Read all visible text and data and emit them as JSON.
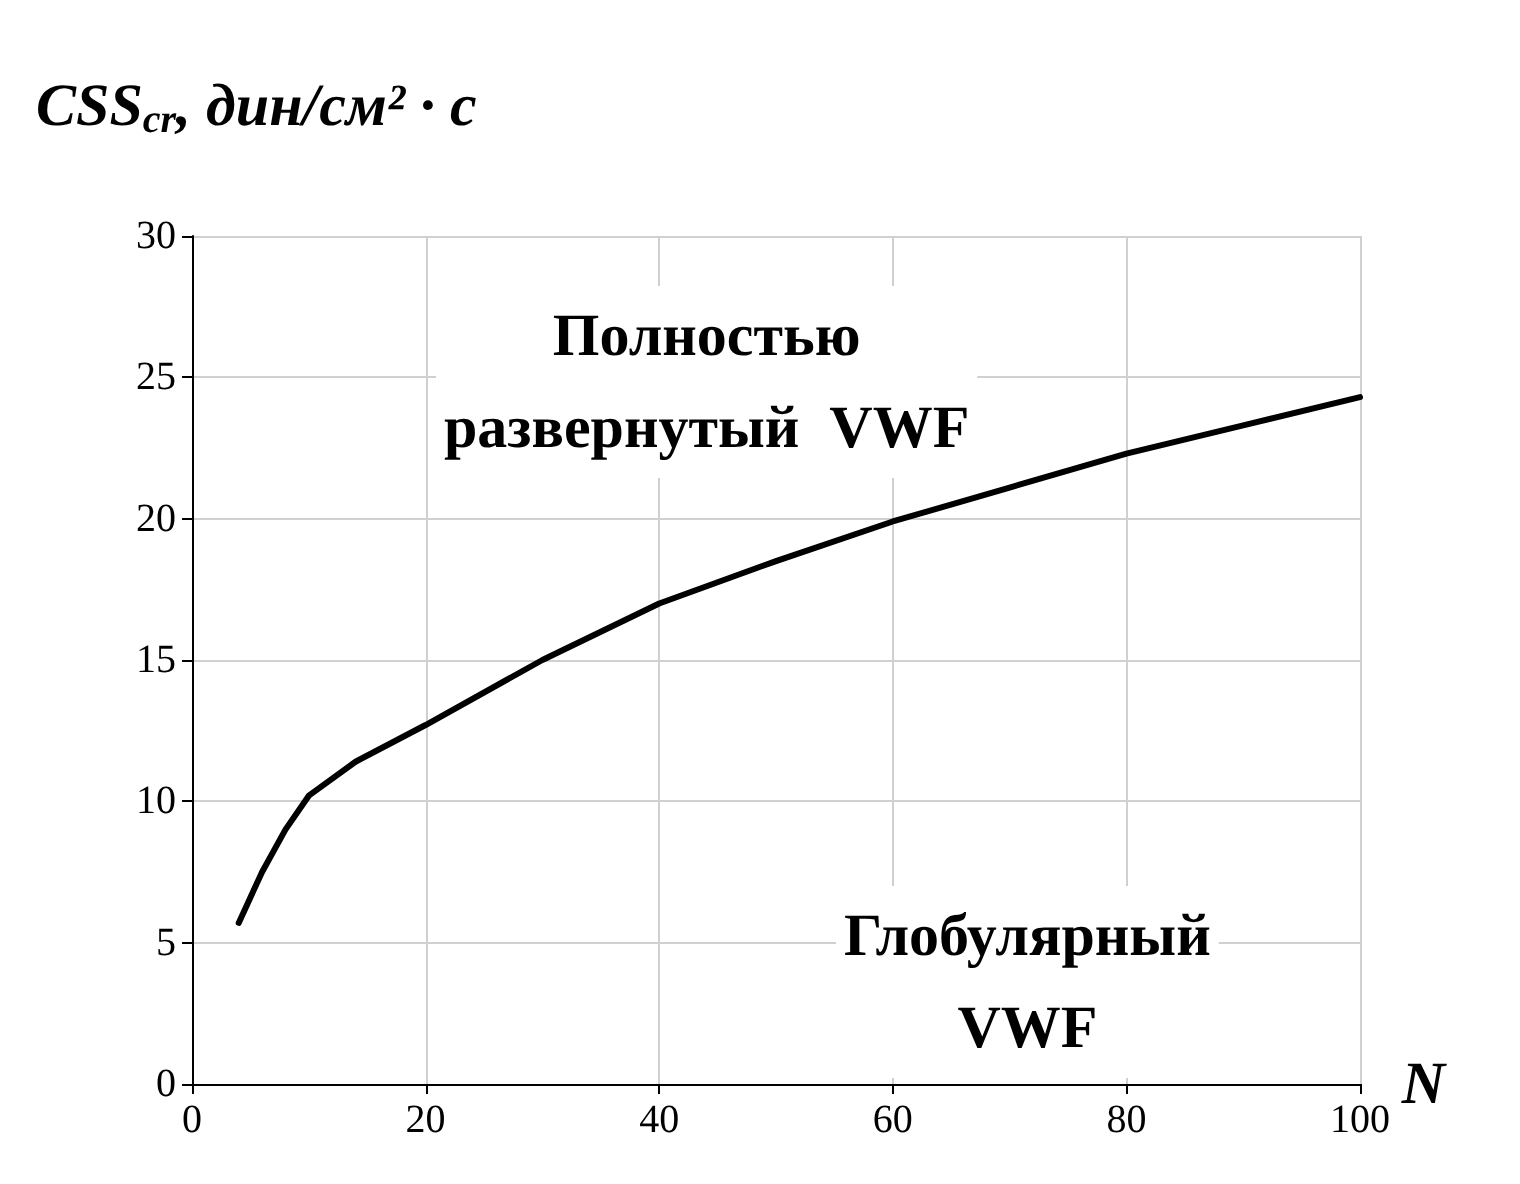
{
  "chart_data": {
    "type": "line",
    "ylabel": "CSS$_{cr}$, дин/см² · с",
    "xlabel": "N",
    "x": [
      4,
      6,
      8,
      10,
      14,
      20,
      30,
      40,
      50,
      60,
      70,
      80,
      90,
      100
    ],
    "series": [
      {
        "color": "#000000",
        "values": [
          5.7,
          7.5,
          9,
          10.2,
          11.4,
          12.7,
          15,
          17,
          18.5,
          19.9,
          21.1,
          22.3,
          23.3,
          24.3
        ]
      }
    ],
    "xlim": [
      0,
      100
    ],
    "xticks": [
      0,
      20,
      40,
      60,
      80,
      100
    ],
    "ylim": [
      0,
      30
    ],
    "yticks": [
      0,
      5,
      10,
      15,
      20,
      25,
      30
    ],
    "grid": true,
    "marker": "none",
    "line_style": "solid",
    "annotations": [
      "Полностью\nразвернутый  VWF",
      "Глобулярный\nVWF"
    ]
  }
}
